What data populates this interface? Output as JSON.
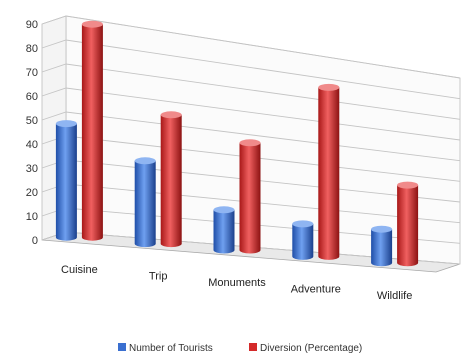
{
  "chart_data": {
    "type": "bar",
    "title": "",
    "xlabel": "",
    "ylabel": "",
    "ylim": [
      0,
      90
    ],
    "yticks": [
      0,
      10,
      20,
      30,
      40,
      50,
      60,
      70,
      80,
      90
    ],
    "grid": true,
    "legend_position": "bottom",
    "categories": [
      "Cuisine",
      "Trip",
      "Monuments",
      "Adventure",
      "Wildlife"
    ],
    "series": [
      {
        "name": "Number of Tourists",
        "color": "#3a6fd0",
        "values": [
          48,
          36,
          18,
          15,
          16
        ]
      },
      {
        "name": "Diversion (Percentage)",
        "color": "#d42a2a",
        "values": [
          90,
          56,
          48,
          78,
          37
        ]
      }
    ]
  }
}
